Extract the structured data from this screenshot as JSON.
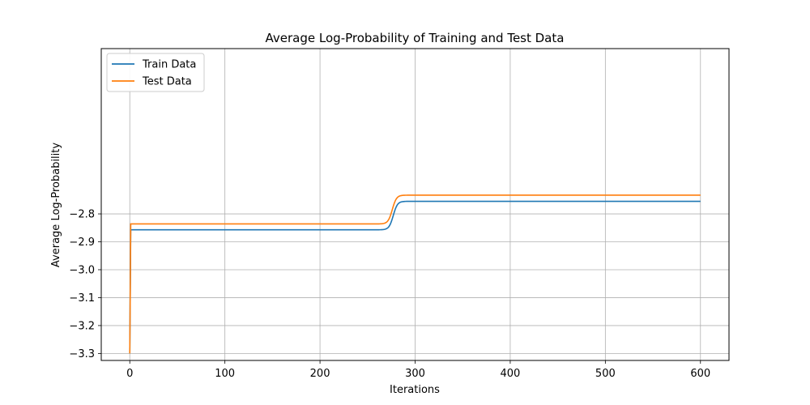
{
  "chart_data": {
    "type": "line",
    "title": "Average Log-Probability of Training and Test Data",
    "xlabel": "Iterations",
    "ylabel": "Average Log-Probability",
    "xlim": [
      -30,
      630
    ],
    "ylim": [
      -3.325,
      -2.208
    ],
    "xticks": [
      0,
      100,
      200,
      300,
      400,
      500,
      600
    ],
    "yticks": [
      -3.3,
      -3.2,
      -3.1,
      -3.0,
      -2.9,
      -2.8
    ],
    "xtick_labels": [
      "0",
      "100",
      "200",
      "300",
      "400",
      "500",
      "600"
    ],
    "ytick_labels": [
      "−3.3",
      "−3.2",
      "−3.1",
      "−3.0",
      "−2.9",
      "−2.8"
    ],
    "grid": true,
    "legend_position": "top-left",
    "series": [
      {
        "name": "Train Data",
        "color": "#1f77b4",
        "start": -3.3,
        "plateau1": -2.857,
        "plateau2": -2.755,
        "transition_center": 277,
        "transition_width": 2.2,
        "x_max": 600
      },
      {
        "name": "Test Data",
        "color": "#ff7f0e",
        "start": -3.3,
        "plateau1": -2.836,
        "plateau2": -2.733,
        "transition_center": 276,
        "transition_width": 2.2,
        "x_max": 600
      }
    ]
  }
}
